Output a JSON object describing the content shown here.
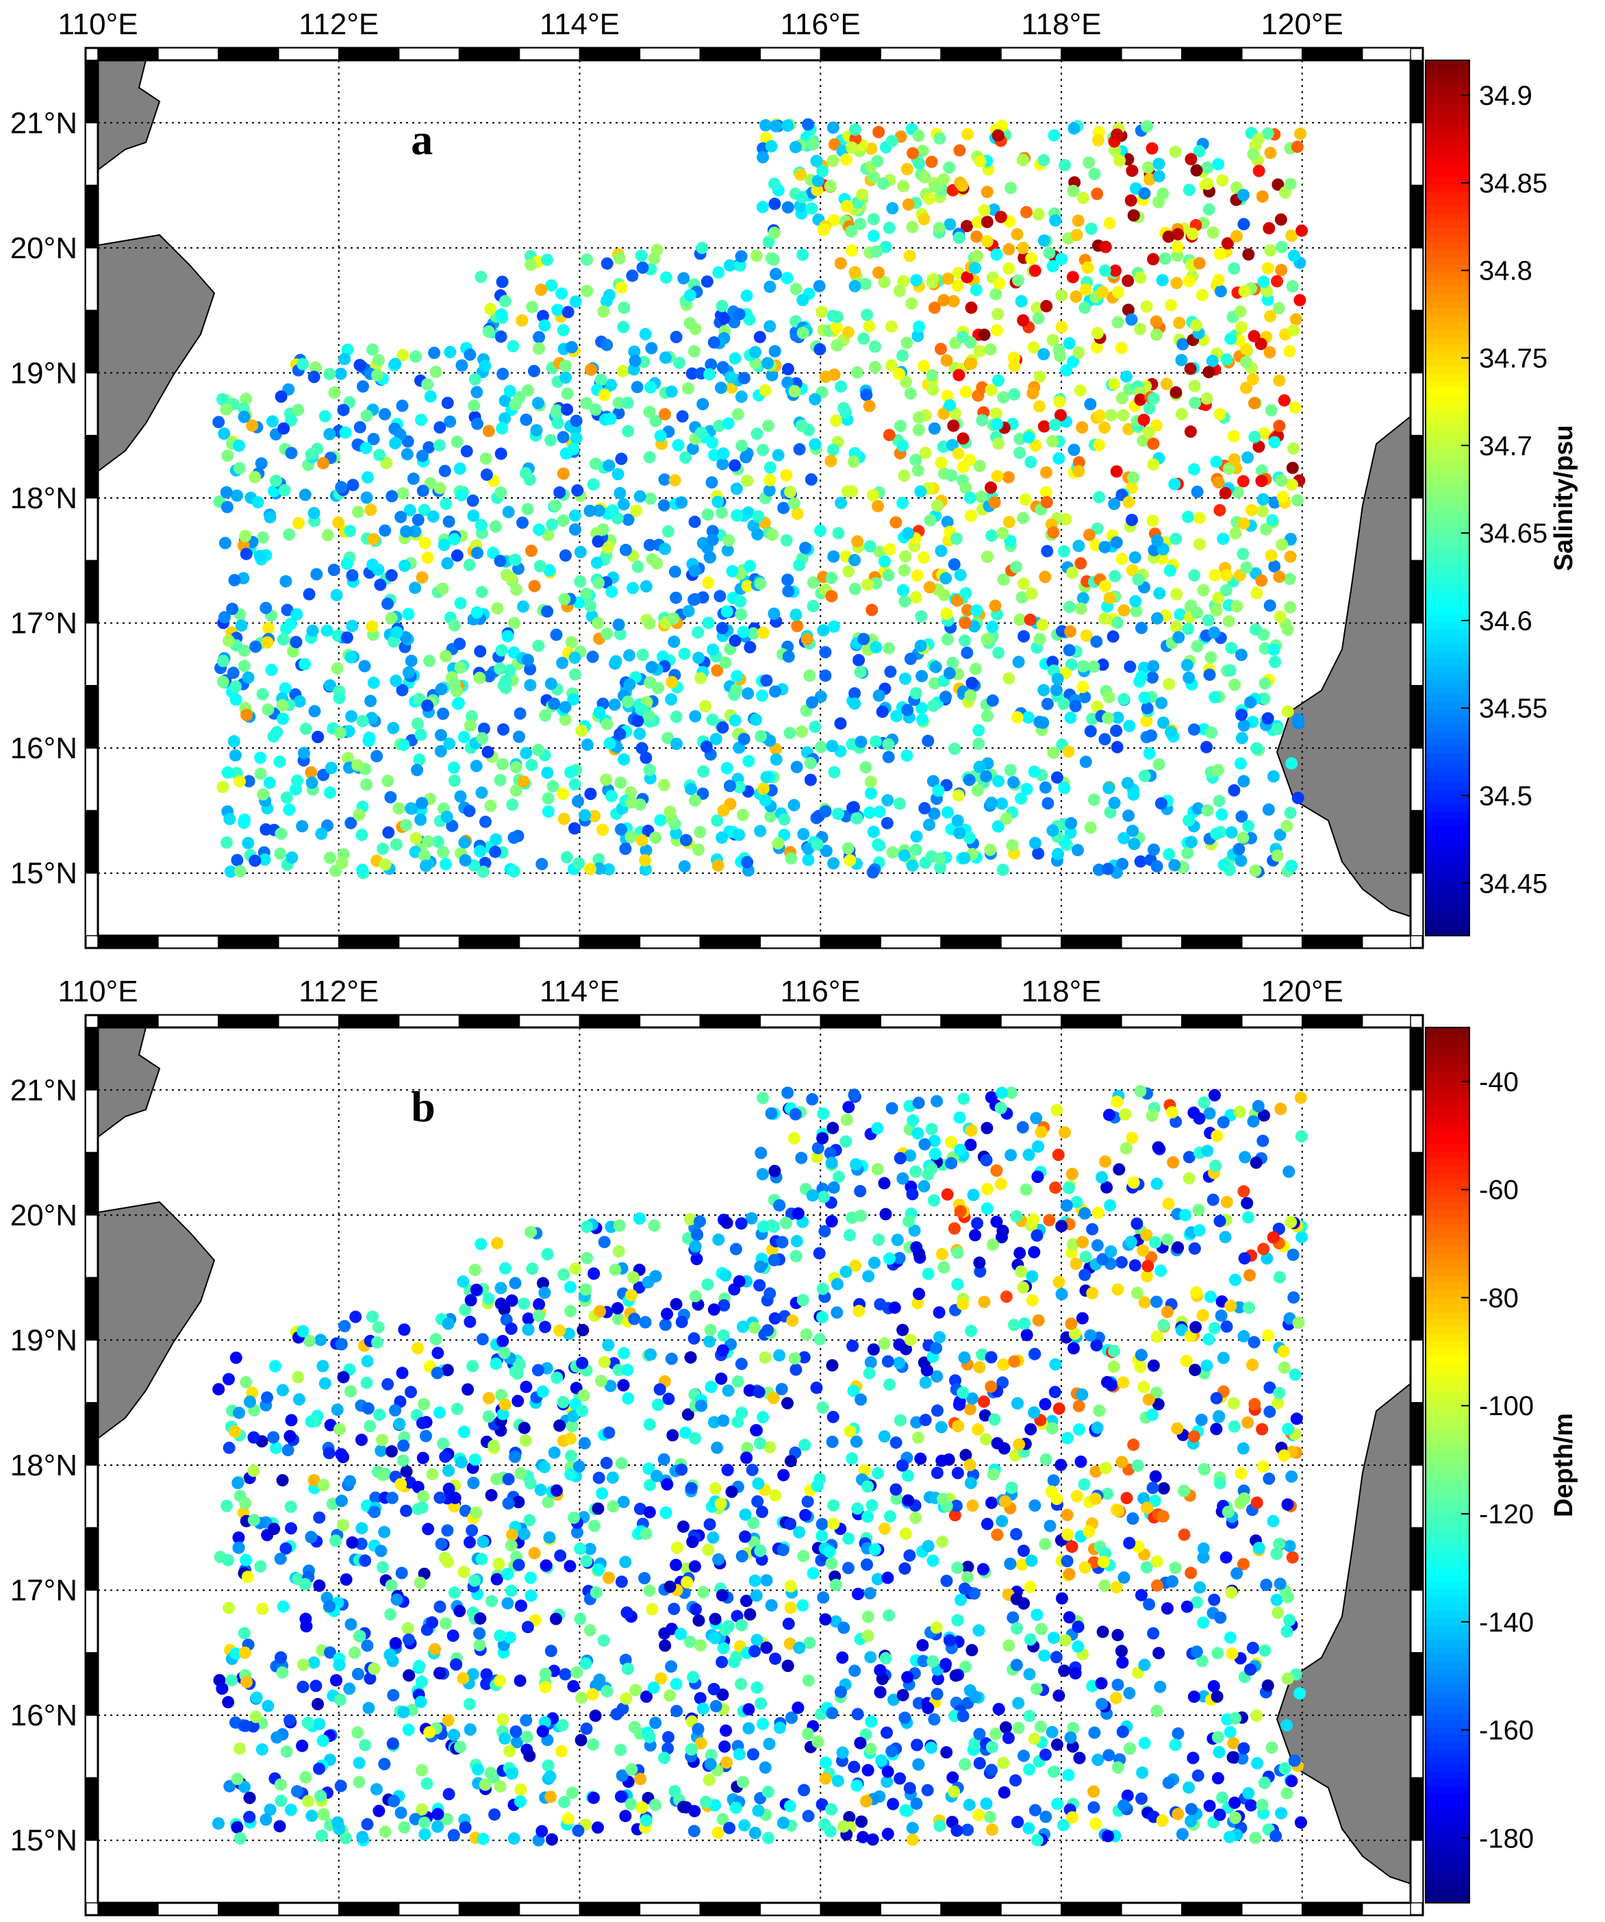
{
  "figure": {
    "panels": [
      {
        "id": "a",
        "letter": "a",
        "lon_ticks": [
          "110°E",
          "112°E",
          "114°E",
          "116°E",
          "118°E",
          "120°E"
        ],
        "lat_ticks": [
          "21°N",
          "20°N",
          "19°N",
          "18°N",
          "17°N",
          "16°N",
          "15°N"
        ],
        "colorbar": {
          "label": "Salinity/psu",
          "ticks": [
            "34.9",
            "34.85",
            "34.8",
            "34.75",
            "34.7",
            "34.65",
            "34.6",
            "34.55",
            "34.5",
            "34.45"
          ],
          "range": [
            34.42,
            34.92
          ],
          "colormap": "jet"
        }
      },
      {
        "id": "b",
        "letter": "b",
        "lon_ticks": [
          "110°E",
          "112°E",
          "114°E",
          "116°E",
          "118°E",
          "120°E"
        ],
        "lat_ticks": [
          "21°N",
          "20°N",
          "19°N",
          "18°N",
          "17°N",
          "16°N",
          "15°N"
        ],
        "colorbar": {
          "label": "Depth/m",
          "ticks": [
            "-40",
            "-60",
            "-80",
            "-100",
            "-120",
            "-140",
            "-160",
            "-180"
          ],
          "range": [
            -192,
            -30
          ],
          "colormap": "jet"
        }
      }
    ],
    "map_extent": {
      "lon": [
        110,
        120.9
      ],
      "lat": [
        14.5,
        21.5
      ]
    },
    "land_color": "#808080",
    "grid_style": "dotted"
  }
}
